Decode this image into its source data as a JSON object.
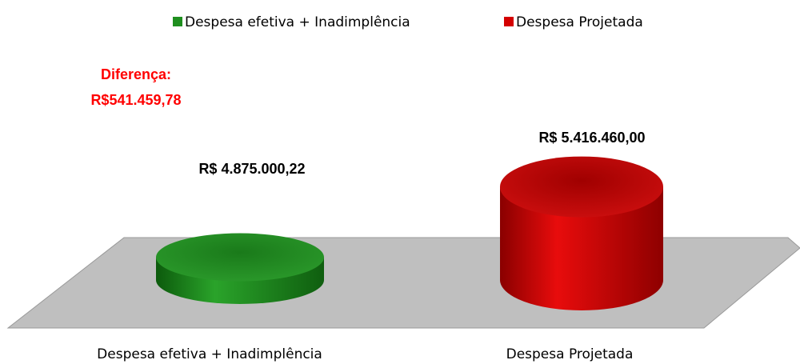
{
  "chart_data": {
    "type": "bar",
    "categories": [
      "Despesa efetiva + Inadimplência",
      "Despesa Projetada"
    ],
    "values": [
      4875000.22,
      5416460.0
    ],
    "value_labels": [
      "R$ 4.875.000,22",
      "R$ 5.416.460,00"
    ],
    "colors": [
      "#1f8f1f",
      "#d40000"
    ],
    "ylim": [
      4700000,
      5500000
    ],
    "legend": "top",
    "annotation": [
      "Diferença:",
      "R$541.459,78"
    ]
  }
}
